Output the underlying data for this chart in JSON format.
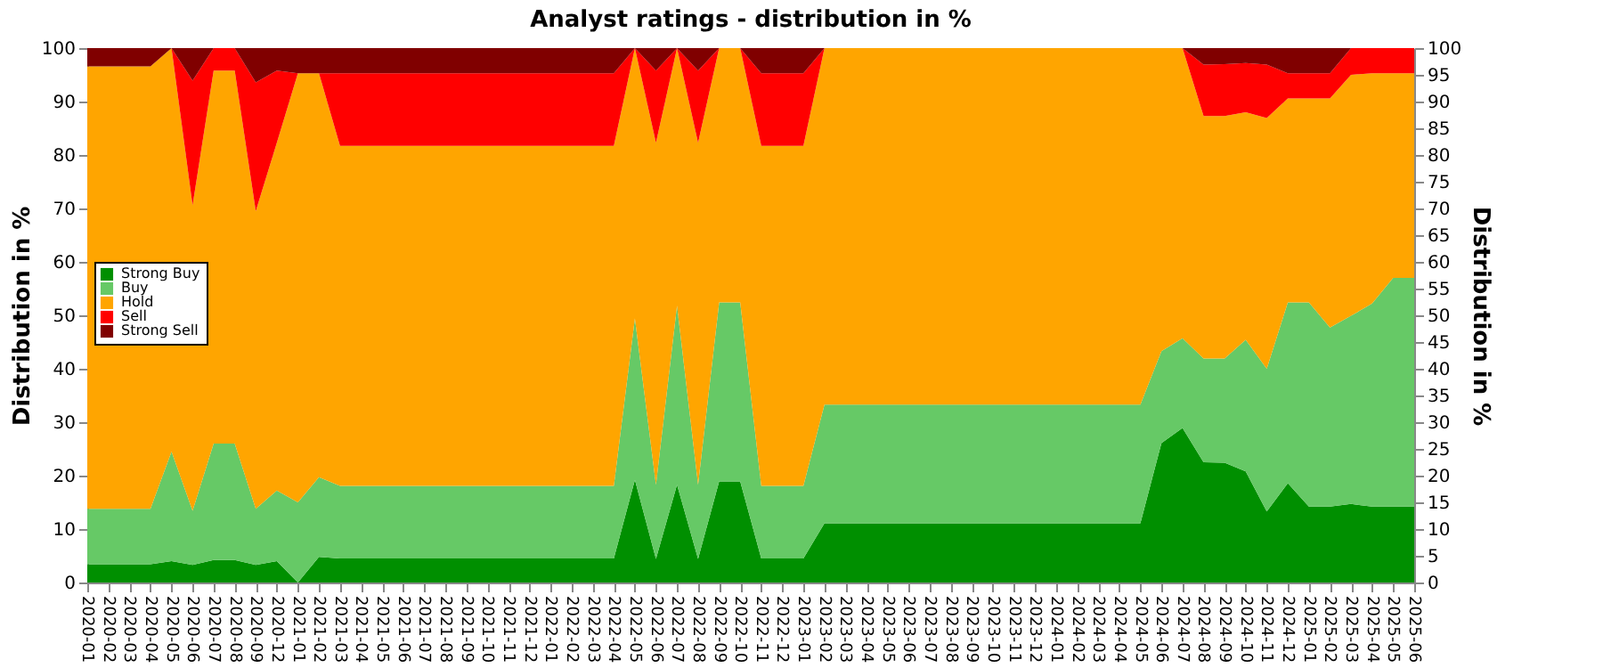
{
  "chart_data": {
    "type": "area",
    "stacked": true,
    "title": "Analyst ratings - distribution in %",
    "ylabel": "Distribution in %",
    "y2label": "Distribution in %",
    "categories": [
      "2020-01",
      "2020-02",
      "2020-03",
      "2020-04",
      "2020-05",
      "2020-06",
      "2020-07",
      "2020-08",
      "2020-09",
      "2020-12",
      "2021-01",
      "2021-02",
      "2021-03",
      "2021-04",
      "2021-05",
      "2021-06",
      "2021-07",
      "2021-08",
      "2021-09",
      "2021-10",
      "2021-11",
      "2021-12",
      "2022-01",
      "2022-02",
      "2022-03",
      "2022-04",
      "2022-05",
      "2022-06",
      "2022-07",
      "2022-08",
      "2022-09",
      "2022-10",
      "2022-11",
      "2022-12",
      "2023-01",
      "2023-02",
      "2023-03",
      "2023-04",
      "2023-05",
      "2023-06",
      "2023-07",
      "2023-08",
      "2023-09",
      "2023-10",
      "2023-11",
      "2023-12",
      "2024-01",
      "2024-02",
      "2024-03",
      "2024-04",
      "2024-05",
      "2024-06",
      "2024-07",
      "2024-08",
      "2024-09",
      "2024-10",
      "2024-11",
      "2024-12",
      "2025-01",
      "2025-02",
      "2025-03",
      "2025-04",
      "2025-05",
      "2025-06"
    ],
    "series": [
      {
        "name": "Strong Buy",
        "color": "#008f00",
        "values": [
          3.4,
          3.4,
          3.4,
          3.4,
          4,
          3.3,
          4.2,
          4.2,
          3.3,
          4,
          0,
          4.8,
          4.5,
          4.5,
          4.5,
          4.5,
          4.5,
          4.5,
          4.5,
          4.5,
          4.5,
          4.5,
          4.5,
          4.5,
          4.5,
          4.5,
          19.2,
          4.4,
          18.3,
          4.4,
          18.9,
          18.9,
          4.5,
          4.5,
          4.5,
          11.1,
          11.1,
          11.1,
          11.1,
          11.1,
          11.1,
          11.1,
          11.1,
          11.1,
          11.1,
          11.1,
          11.1,
          11.1,
          11.1,
          11.1,
          11.1,
          26.1,
          28.9,
          22.5,
          22.4,
          20.8,
          13.3,
          18.6,
          14.2,
          14.2,
          14.7,
          14.2,
          14.2,
          14.2
        ]
      },
      {
        "name": "Buy",
        "color": "#66c966",
        "values": [
          10.4,
          10.4,
          10.4,
          10.4,
          20.5,
          10.1,
          21.8,
          21.8,
          10.5,
          13.2,
          15,
          14.9,
          13.6,
          13.6,
          13.6,
          13.6,
          13.6,
          13.6,
          13.6,
          13.6,
          13.6,
          13.6,
          13.6,
          13.6,
          13.6,
          13.6,
          30.2,
          13.9,
          33.5,
          13.9,
          33.5,
          33.5,
          13.6,
          13.6,
          13.6,
          22.2,
          22.2,
          22.2,
          22.2,
          22.2,
          22.2,
          22.2,
          22.2,
          22.2,
          22.2,
          22.2,
          22.2,
          22.2,
          22.2,
          22.2,
          22.2,
          17.2,
          16.8,
          19.4,
          19.5,
          24.6,
          26.7,
          33.8,
          38.2,
          33.5,
          35.2,
          38,
          42.8,
          42.8
        ]
      },
      {
        "name": "Hold",
        "color": "#ffa500",
        "values": [
          82.8,
          82.8,
          82.8,
          82.8,
          75.5,
          57.2,
          69.8,
          69.8,
          55.7,
          65.1,
          80.3,
          75.6,
          63.6,
          63.6,
          63.6,
          63.6,
          63.6,
          63.6,
          63.6,
          63.6,
          63.6,
          63.6,
          63.6,
          63.6,
          63.6,
          63.6,
          50.6,
          64,
          48.2,
          64,
          47.6,
          47.6,
          63.6,
          63.6,
          63.6,
          66.7,
          66.7,
          66.7,
          66.7,
          66.7,
          66.7,
          66.7,
          66.7,
          66.7,
          66.7,
          66.7,
          66.7,
          66.7,
          66.7,
          66.7,
          66.7,
          56.7,
          54.3,
          45.4,
          45.4,
          42.6,
          46.9,
          38.2,
          38.2,
          42.9,
          45.1,
          43.1,
          38.3,
          38.3
        ]
      },
      {
        "name": "Sell",
        "color": "#ff0000",
        "values": [
          0,
          0,
          0,
          0,
          0,
          23.3,
          4.2,
          4.2,
          24.1,
          13.5,
          0,
          0,
          13.6,
          13.6,
          13.6,
          13.6,
          13.6,
          13.6,
          13.6,
          13.6,
          13.6,
          13.6,
          13.6,
          13.6,
          13.6,
          13.6,
          0,
          13.5,
          0,
          13.5,
          0,
          0,
          13.6,
          13.6,
          13.6,
          0,
          0,
          0,
          0,
          0,
          0,
          0,
          0,
          0,
          0,
          0,
          0,
          0,
          0,
          0,
          0,
          0,
          0,
          9.6,
          9.7,
          9.2,
          10,
          4.7,
          4.7,
          4.7,
          5,
          4.7,
          4.7,
          4.7
        ]
      },
      {
        "name": "Strong Sell",
        "color": "#800000",
        "values": [
          3.4,
          3.4,
          3.4,
          3.4,
          0,
          6.1,
          0,
          0,
          6.4,
          4.2,
          4.7,
          4.7,
          4.7,
          4.7,
          4.7,
          4.7,
          4.7,
          4.7,
          4.7,
          4.7,
          4.7,
          4.7,
          4.7,
          4.7,
          4.7,
          4.7,
          0,
          4.2,
          0,
          4.2,
          0,
          0,
          4.7,
          4.7,
          4.7,
          0,
          0,
          0,
          0,
          0,
          0,
          0,
          0,
          0,
          0,
          0,
          0,
          0,
          0,
          0,
          0,
          0,
          0,
          3.1,
          3,
          2.8,
          3.1,
          4.7,
          4.7,
          4.7,
          0,
          0,
          0,
          0
        ]
      }
    ],
    "ylim": [
      0,
      100
    ],
    "yticks": [
      0,
      10,
      20,
      30,
      40,
      50,
      60,
      70,
      80,
      90,
      100
    ],
    "y2lim": [
      0,
      100
    ],
    "y2ticks": [
      0,
      5,
      10,
      15,
      20,
      25,
      30,
      35,
      40,
      45,
      50,
      55,
      60,
      65,
      70,
      75,
      80,
      85,
      90,
      95,
      100
    ],
    "grid": "y",
    "legend": "left"
  }
}
